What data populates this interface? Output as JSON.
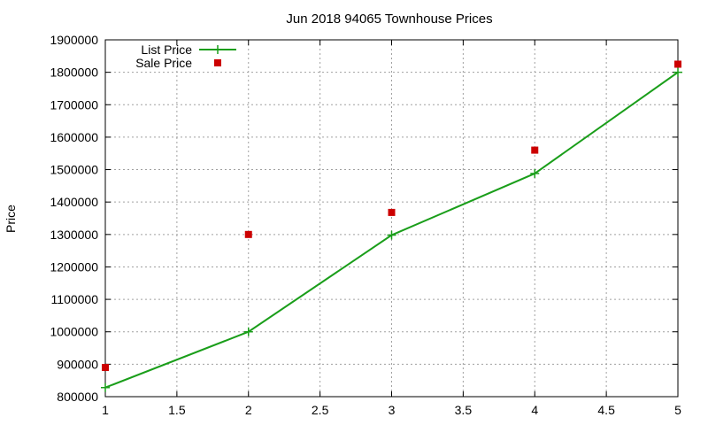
{
  "chart_data": {
    "type": "line",
    "title": "Jun 2018 94065 Townhouse Prices",
    "xlabel": "",
    "ylabel": "Price",
    "xlim": [
      1,
      5
    ],
    "ylim": [
      800000,
      1900000
    ],
    "grid": true,
    "legend_position": "top-left",
    "x_ticks": [
      "1",
      "1.5",
      "2",
      "2.5",
      "3",
      "3.5",
      "4",
      "4.5",
      "5"
    ],
    "y_ticks": [
      "800000",
      "900000",
      "1000000",
      "1100000",
      "1200000",
      "1300000",
      "1400000",
      "1500000",
      "1600000",
      "1700000",
      "1800000",
      "1900000"
    ],
    "series": [
      {
        "name": "List Price",
        "style": "line+points",
        "color": "#1a9e1a",
        "x": [
          1,
          2,
          3,
          4,
          5
        ],
        "y": [
          828000,
          1000000,
          1298000,
          1488000,
          1800000
        ]
      },
      {
        "name": "Sale Price",
        "style": "points",
        "color": "#cc0000",
        "x": [
          1,
          2,
          3,
          4,
          5
        ],
        "y": [
          890000,
          1300000,
          1368000,
          1560000,
          1825000
        ]
      }
    ]
  }
}
